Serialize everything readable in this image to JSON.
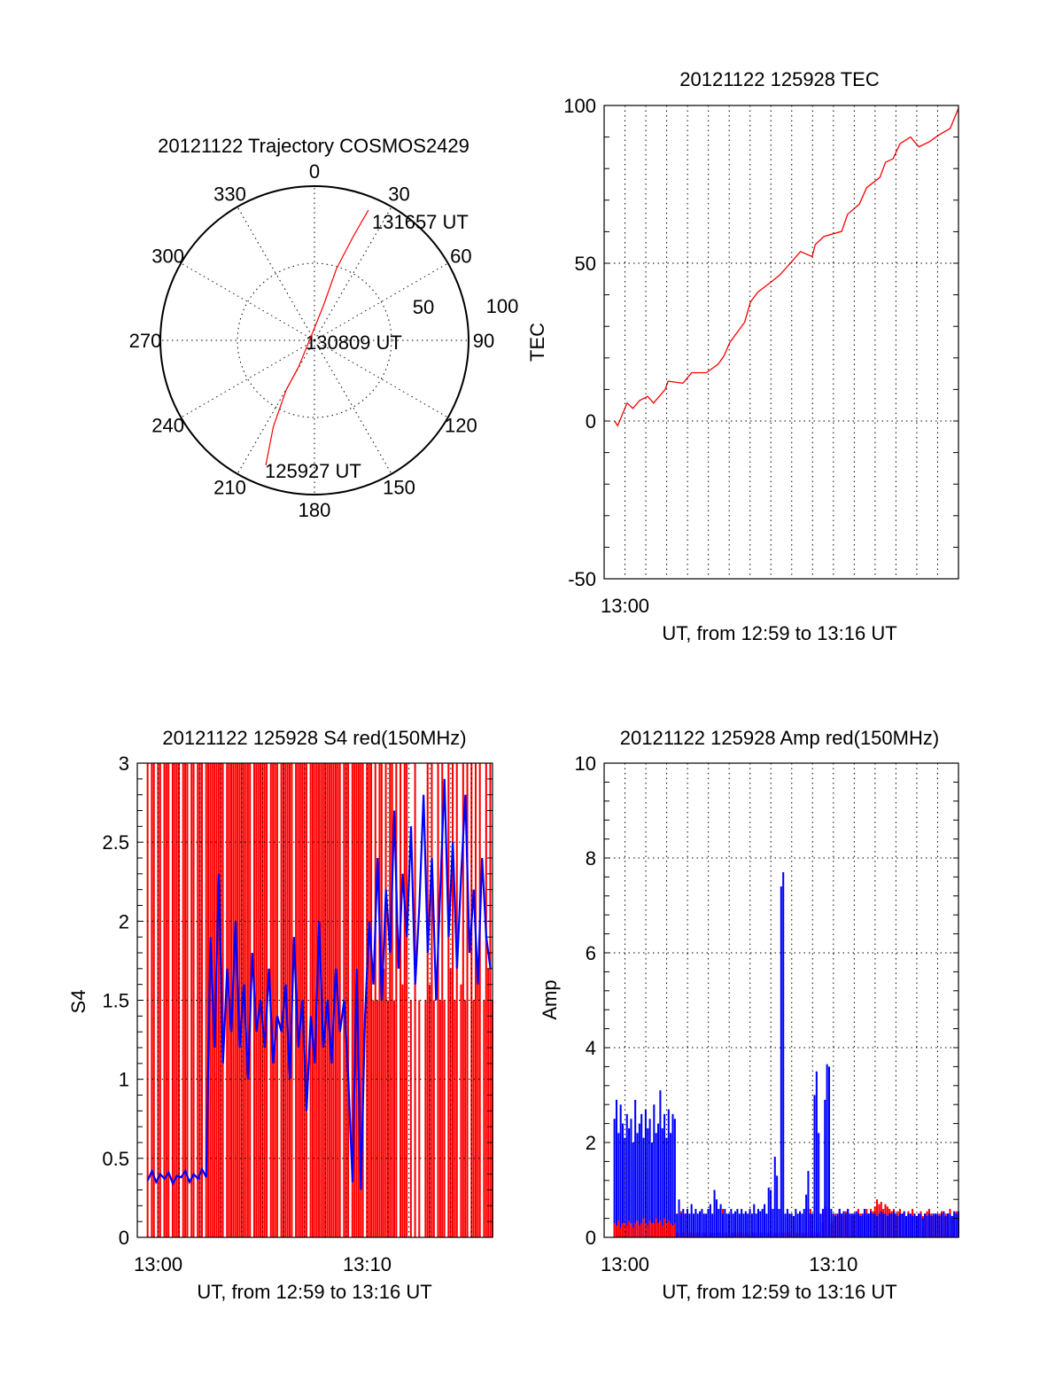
{
  "chart_data": [
    {
      "id": "trajectory",
      "type": "polar",
      "title": "20121122 Trajectory COSMOS2429",
      "angle_labels": [
        "0",
        "30",
        "60",
        "90",
        "120",
        "150",
        "180",
        "210",
        "240",
        "270",
        "300",
        "330"
      ],
      "radial_labels": [
        "50",
        "100"
      ],
      "rlim": [
        0,
        100
      ],
      "grid": true,
      "line_color": "#ff0000",
      "trajectory": [
        {
          "az": 201.3,
          "r": 86.9
        },
        {
          "az": 205.5,
          "r": 62
        },
        {
          "az": 209.7,
          "r": 37
        },
        {
          "az": 211,
          "r": 20
        },
        {
          "az": 292,
          "r": 3
        },
        {
          "az": 14.4,
          "r": 23
        },
        {
          "az": 17.1,
          "r": 48.7
        },
        {
          "az": 20.5,
          "r": 72
        },
        {
          "az": 22.5,
          "r": 91.5
        }
      ],
      "annotations": {
        "start": "125927 UT",
        "middle": "130809 UT",
        "end": "131657 UT"
      }
    },
    {
      "id": "tec",
      "type": "line",
      "title": "20121122 125928 TEC",
      "xlabel": "UT, from 12:59 to 13:16 UT",
      "ylabel": "TEC",
      "x_unit": "minutes after 13:00",
      "xlim": [
        -1,
        16
      ],
      "ylim": [
        -50,
        100
      ],
      "x_ticks": [
        {
          "value": 0,
          "label": "13:00"
        }
      ],
      "y_ticks": [
        {
          "value": -50,
          "label": "-50"
        },
        {
          "value": 0,
          "label": "0"
        },
        {
          "value": 50,
          "label": "50"
        },
        {
          "value": 100,
          "label": "100"
        }
      ],
      "y_minor": 10,
      "grid": true,
      "series": [
        {
          "name": "TEC",
          "color": "#ff0000",
          "x": [
            -0.5,
            -0.35,
            0.1,
            0.38,
            0.7,
            1.09,
            1.37,
            1.93,
            2.07,
            2.78,
            3.2,
            3.9,
            4.47,
            4.75,
            5.03,
            5.74,
            6.02,
            6.38,
            7.0,
            7.43,
            8.0,
            8.42,
            8.98,
            9.13,
            9.55,
            10.4,
            10.68,
            11.24,
            11.6,
            12.23,
            12.5,
            12.86,
            13.2,
            13.7,
            14.1,
            14.6,
            15.05,
            15.6,
            16.0
          ],
          "y": [
            0,
            -1.5,
            5.7,
            4,
            6.5,
            7.8,
            5.7,
            10,
            12.6,
            12,
            15.3,
            15.3,
            18,
            20.6,
            24.9,
            31.3,
            37.7,
            40.9,
            44,
            46.3,
            50.5,
            53.7,
            52.1,
            55.9,
            58.5,
            60.1,
            65.5,
            68.7,
            74,
            77.2,
            82,
            83.1,
            87.9,
            90,
            86.9,
            88.5,
            90.6,
            92.7,
            99.1
          ]
        }
      ]
    },
    {
      "id": "s4",
      "type": "bar+line",
      "title": "20121122 125928 S4 red(150MHz)",
      "xlabel": "UT, from 12:59 to 13:16 UT",
      "ylabel": "S4",
      "x_unit": "minutes after 13:00",
      "xlim": [
        -1,
        16
      ],
      "ylim": [
        0,
        3
      ],
      "x_ticks": [
        {
          "value": 0,
          "label": "13:00"
        },
        {
          "value": 10,
          "label": "13:10"
        }
      ],
      "y_ticks": [
        {
          "value": 0,
          "label": "0"
        },
        {
          "value": 0.5,
          "label": "0.5"
        },
        {
          "value": 1,
          "label": "1"
        },
        {
          "value": 1.5,
          "label": "1.5"
        },
        {
          "value": 2,
          "label": "2"
        },
        {
          "value": 2.5,
          "label": "2.5"
        },
        {
          "value": 3,
          "label": "3"
        }
      ],
      "y_minor": 0.1,
      "grid": true,
      "series": [
        {
          "name": "red",
          "color": "#ff0000",
          "t_start": -0.6,
          "step": 0.1,
          "values": [
            0,
            3,
            0,
            3,
            3,
            0,
            3,
            3,
            0,
            3,
            3,
            3,
            0,
            3,
            3,
            3,
            3,
            0,
            3,
            3,
            3,
            0,
            3,
            3,
            0,
            3,
            3,
            3,
            0,
            3,
            3,
            3,
            3,
            3,
            3,
            3,
            3,
            3,
            0,
            3,
            3,
            3,
            3,
            3,
            3,
            3,
            3,
            3,
            3,
            3,
            3,
            0,
            3,
            3,
            3,
            3,
            3,
            3,
            3,
            0,
            3,
            3,
            3,
            3,
            0,
            3,
            3,
            3,
            3,
            3,
            3,
            0,
            3,
            3,
            3,
            3,
            3,
            3,
            0,
            3,
            3,
            3,
            3,
            3,
            3,
            3,
            3,
            3,
            3,
            3,
            3,
            3,
            3,
            3,
            0,
            3,
            3,
            3,
            0,
            3,
            3,
            3,
            3,
            3,
            3,
            0,
            3,
            3,
            3,
            1.5,
            3,
            1.5,
            3,
            3,
            1.7,
            3,
            1.5,
            3,
            3,
            1.5,
            3,
            0,
            3,
            1.6,
            3,
            3,
            0,
            1.5,
            0,
            3,
            0,
            1.5,
            0,
            0,
            1.5,
            3,
            1.6,
            3,
            1.5,
            0,
            3,
            1.5,
            3,
            1.5,
            0,
            3,
            1.7,
            3,
            1.5,
            3,
            0,
            1.6,
            3,
            1.5,
            3,
            0,
            3,
            1.5,
            3,
            1.7,
            3,
            0,
            1.5,
            3,
            1.7,
            3,
            1.5
          ]
        },
        {
          "name": "blue",
          "color": "#0000ff",
          "t_start": -0.5,
          "step": 0.2,
          "values": [
            0.36,
            0.42,
            0.35,
            0.4,
            0.37,
            0.41,
            0.34,
            0.39,
            0.38,
            0.42,
            0.35,
            0.4,
            0.37,
            0.43,
            0.38,
            1.9,
            1.2,
            2.3,
            1.1,
            1.7,
            1.3,
            2.0,
            1.2,
            1.6,
            1.0,
            1.8,
            1.3,
            1.5,
            1.2,
            1.7,
            1.1,
            1.4,
            1.3,
            1.6,
            1.0,
            1.9,
            1.2,
            1.5,
            0.8,
            1.4,
            1.1,
            2.0,
            1.2,
            1.5,
            1.1,
            1.7,
            1.3,
            1.5,
            1.0,
            0.35,
            1.7,
            0.3,
            1.4,
            2.0,
            1.6,
            2.4,
            1.5,
            2.2,
            1.8,
            2.7,
            1.7,
            2.3,
            1.9,
            2.6,
            1.6,
            2.1,
            2.8,
            1.8,
            2.4,
            1.5,
            2.2,
            2.9,
            1.9,
            2.5,
            1.7,
            2.3,
            2.8,
            1.8,
            2.2,
            1.6,
            2.4,
            1.9,
            1.7
          ]
        }
      ]
    },
    {
      "id": "amp",
      "type": "bar",
      "title": "20121122 125928 Amp red(150MHz)",
      "xlabel": "UT, from 12:59 to 13:16 UT",
      "ylabel": "Amp",
      "x_unit": "minutes after 13:00",
      "xlim": [
        -1,
        16
      ],
      "ylim": [
        0,
        10
      ],
      "x_ticks": [
        {
          "value": 0,
          "label": "13:00"
        },
        {
          "value": 10,
          "label": "13:10"
        }
      ],
      "y_ticks": [
        {
          "value": 0,
          "label": "0"
        },
        {
          "value": 2,
          "label": "2"
        },
        {
          "value": 4,
          "label": "4"
        },
        {
          "value": 6,
          "label": "6"
        },
        {
          "value": 8,
          "label": "8"
        },
        {
          "value": 10,
          "label": "10"
        }
      ],
      "y_minor": 0.4,
      "grid": true,
      "series": [
        {
          "name": "blue",
          "color": "#0000ff",
          "t_start": -0.5,
          "step": 0.1,
          "values": [
            2.5,
            2.9,
            2.2,
            2.8,
            2.4,
            2.1,
            2.6,
            2.3,
            2.5,
            2.0,
            2.9,
            2.2,
            2.4,
            2.6,
            2.1,
            2.7,
            2.3,
            2.5,
            2.0,
            2.8,
            2.2,
            2.4,
            3.1,
            2.3,
            2.6,
            2.1,
            2.7,
            2.2,
            2.6,
            2.5,
            0.5,
            0.8,
            0.5,
            0.6,
            0.5,
            0.6,
            0.5,
            0.7,
            0.5,
            0.6,
            0.5,
            0.55,
            0.6,
            0.5,
            0.5,
            0.6,
            0.7,
            0.5,
            1.0,
            0.8,
            0.6,
            0.7,
            0.5,
            0.6,
            0.5,
            0.5,
            0.6,
            0.5,
            0.55,
            0.6,
            0.5,
            0.6,
            0.5,
            0.55,
            0.5,
            0.6,
            0.5,
            0.7,
            0.5,
            0.6,
            0.55,
            0.6,
            0.7,
            0.5,
            1.05,
            1.0,
            0.6,
            1.7,
            1.3,
            0.6,
            7.4,
            7.7,
            0.5,
            0.6,
            0.5,
            0.5,
            0.45,
            0.6,
            0.5,
            0.55,
            0.5,
            0.6,
            0.9,
            1.4,
            0.5,
            0.5,
            3.0,
            3.5,
            2.2,
            0.5,
            0.6,
            2.9,
            3.65,
            3.6,
            0.6,
            0.5,
            0.45,
            0.5,
            0.6,
            0.5,
            0.55,
            0.5,
            0.6,
            0.5,
            0.5,
            0.5,
            0.55,
            0.5,
            0.45,
            0.5,
            0.6,
            0.5,
            0.5,
            0.55,
            0.5,
            0.5,
            0.45,
            0.5,
            0.55,
            0.5,
            0.5,
            0.45,
            0.5,
            0.5,
            0.55,
            0.5,
            0.45,
            0.5,
            0.5,
            0.55,
            0.45,
            0.5,
            0.5,
            0.45,
            0.5,
            0.45,
            0.5,
            0.5,
            0.4,
            0.5,
            0.45,
            0.5,
            0.45,
            0.5,
            0.5,
            0.5,
            0.45,
            0.5,
            0.55,
            0.45,
            0.5,
            0.5,
            0.45,
            0.55,
            0.5,
            0.55
          ]
        },
        {
          "name": "red",
          "color": "#ff0000",
          "t_start": -0.5,
          "step": 0.1,
          "values": [
            0.3,
            0.25,
            0.35,
            0.2,
            0.3,
            0.3,
            0.25,
            0.35,
            0.3,
            0.2,
            0.3,
            0.35,
            0.25,
            0.3,
            0.4,
            0.3,
            0.25,
            0.35,
            0.3,
            0.3,
            0.4,
            0.3,
            0.35,
            0.25,
            0.4,
            0.3,
            0.35,
            0.3,
            0.25,
            0.3,
            0.1,
            0.1,
            0.55,
            0.1,
            0.5,
            0.1,
            0.1,
            0.1,
            0.1,
            0.1,
            0.1,
            0.1,
            0.1,
            0.1,
            0.1,
            0.1,
            0.1,
            0.1,
            0.5,
            0.1,
            0.1,
            0.1,
            0.6,
            0.1,
            0.1,
            0.5,
            0.1,
            0.1,
            0.1,
            0.1,
            0.1,
            0.1,
            0.1,
            0.1,
            0.1,
            0.1,
            0.1,
            0.1,
            0.1,
            0.1,
            0.1,
            0.1,
            0.1,
            0.1,
            0.1,
            0.1,
            0.1,
            0.1,
            0.1,
            0.1,
            0.1,
            0.1,
            0.1,
            0.1,
            0.1,
            0.5,
            0.1,
            0.1,
            0.1,
            0.1,
            0.1,
            0.1,
            0.1,
            0.1,
            0.6,
            0.1,
            0.6,
            0.1,
            0.1,
            0.3,
            0.3,
            0.65,
            0.6,
            0.1,
            0.3,
            0.4,
            0.5,
            0.45,
            0.6,
            0.5,
            0.45,
            0.55,
            0.6,
            0.5,
            0.45,
            0.5,
            0.55,
            0.6,
            0.5,
            0.45,
            0.55,
            0.6,
            0.5,
            0.6,
            0.55,
            0.65,
            0.8,
            0.7,
            0.75,
            0.6,
            0.7,
            0.65,
            0.6,
            0.55,
            0.6,
            0.5,
            0.55,
            0.6,
            0.5,
            0.55,
            0.45,
            0.55,
            0.5,
            0.6,
            0.5,
            0.45,
            0.5,
            0.55,
            0.45,
            0.5,
            0.55,
            0.6,
            0.5,
            0.45,
            0.5,
            0.45,
            0.5,
            0.55,
            0.45,
            0.5,
            0.5,
            0.6,
            0.45,
            0.5,
            0.55,
            0.5
          ]
        }
      ]
    }
  ]
}
